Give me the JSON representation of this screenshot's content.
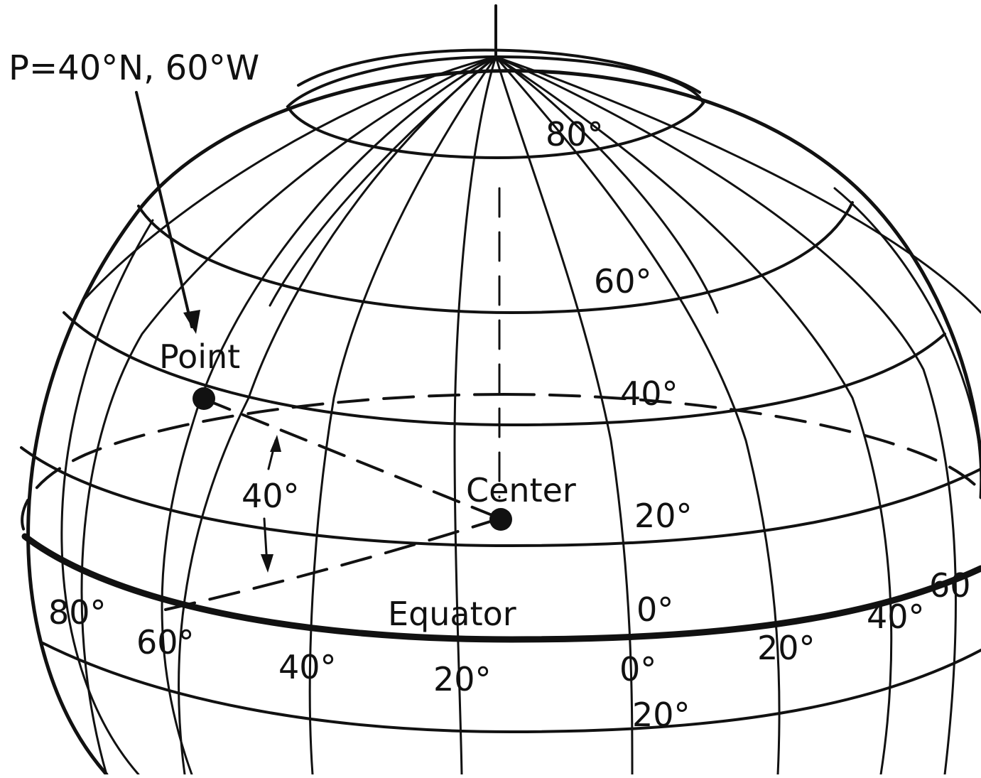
{
  "title": "P=40°N, 60°W",
  "labels": {
    "point": "Point",
    "center": "Center",
    "equator": "Equator",
    "angle": "40°"
  },
  "latitudes": {
    "lat80": "80°",
    "lat60": "60°",
    "lat40": "40°",
    "lat20": "20°",
    "lat0": "0°"
  },
  "longitudes": {
    "west80": "80°",
    "west60": "60°",
    "west40": "40°",
    "west20": "20°",
    "zero": "0°",
    "east20": "20°",
    "east40": "40°",
    "east60": "60",
    "south20": "20°"
  },
  "colors": {
    "ink": "#111111",
    "paper": "#ffffff"
  }
}
